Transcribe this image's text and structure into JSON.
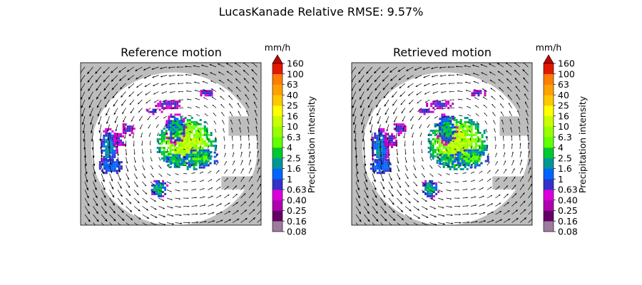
{
  "figure": {
    "suptitle": "LucasKanade Relative RMSE: 9.57%"
  },
  "colorbar": {
    "unit": "mm/h",
    "label": "Precipitation intensity",
    "ticks": [
      "0.08",
      "0.16",
      "0.25",
      "0.40",
      "0.63",
      "1",
      "1.6",
      "2.5",
      "4",
      "6.3",
      "10",
      "16",
      "25",
      "40",
      "63",
      "100",
      "160"
    ],
    "colors": [
      "#9e7b9e",
      "#640064",
      "#af00af",
      "#dc00dc",
      "#3232c8",
      "#0064ff",
      "#009696",
      "#00c832",
      "#64ff00",
      "#96ff00",
      "#c8ff00",
      "#ffff00",
      "#ffc800",
      "#ffa000",
      "#ff7d00",
      "#e11900"
    ],
    "extend_color": "#c10000"
  },
  "colors": {
    "background_mask": "#bdbdbd",
    "radar_domain": "#ffffff",
    "arrow": "#000000"
  },
  "chart_data": [
    {
      "type": "heatmap",
      "title": "Reference motion",
      "xlabel": "",
      "ylabel": "",
      "axes_ticks": "none",
      "overlay": "motion vector field (quiver), counter-clockwise rotation, strongest near top-left",
      "precip_cells_mm_h": [
        {
          "region": "central main cell",
          "peak": 10
        },
        {
          "region": "western band",
          "peak": 1.6
        },
        {
          "region": "south cell",
          "peak": 2.5
        },
        {
          "region": "north streaks",
          "peak": 1
        }
      ]
    },
    {
      "type": "heatmap",
      "title": "Retrieved motion",
      "xlabel": "",
      "ylabel": "",
      "axes_ticks": "none",
      "overlay": "motion vector field (quiver), counter-clockwise rotation, strongest near top-left",
      "precip_cells_mm_h": [
        {
          "region": "central main cell",
          "peak": 10
        },
        {
          "region": "western band",
          "peak": 1.6
        },
        {
          "region": "south cell",
          "peak": 2.5
        },
        {
          "region": "north streaks",
          "peak": 1
        }
      ]
    }
  ]
}
